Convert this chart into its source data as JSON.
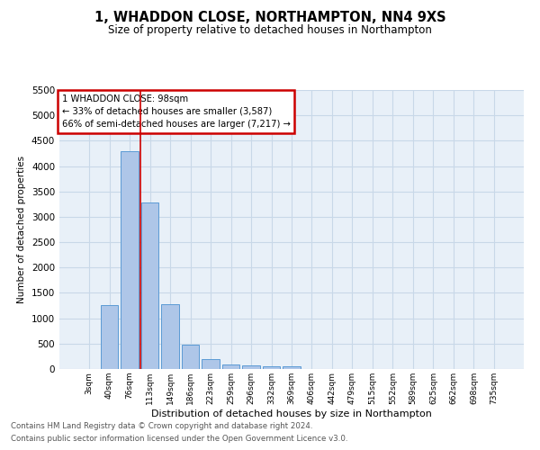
{
  "title": "1, WHADDON CLOSE, NORTHAMPTON, NN4 9XS",
  "subtitle": "Size of property relative to detached houses in Northampton",
  "xlabel": "Distribution of detached houses by size in Northampton",
  "ylabel": "Number of detached properties",
  "footnote1": "Contains HM Land Registry data © Crown copyright and database right 2024.",
  "footnote2": "Contains public sector information licensed under the Open Government Licence v3.0.",
  "bar_labels": [
    "3sqm",
    "40sqm",
    "76sqm",
    "113sqm",
    "149sqm",
    "186sqm",
    "223sqm",
    "259sqm",
    "296sqm",
    "332sqm",
    "369sqm",
    "406sqm",
    "442sqm",
    "479sqm",
    "515sqm",
    "552sqm",
    "589sqm",
    "625sqm",
    "662sqm",
    "698sqm",
    "735sqm"
  ],
  "bar_values": [
    0,
    1260,
    4300,
    3280,
    1270,
    480,
    195,
    95,
    75,
    50,
    45,
    0,
    0,
    0,
    0,
    0,
    0,
    0,
    0,
    0,
    0
  ],
  "bar_color": "#aec6e8",
  "bar_edge_color": "#5b9bd5",
  "vline_x": 2.55,
  "vline_color": "#cc0000",
  "ylim": [
    0,
    5500
  ],
  "yticks": [
    0,
    500,
    1000,
    1500,
    2000,
    2500,
    3000,
    3500,
    4000,
    4500,
    5000,
    5500
  ],
  "annotation_text": "1 WHADDON CLOSE: 98sqm\n← 33% of detached houses are smaller (3,587)\n66% of semi-detached houses are larger (7,217) →",
  "annotation_box_color": "#ffffff",
  "annotation_box_edge": "#cc0000",
  "grid_color": "#c8d8e8",
  "bg_color": "#e8f0f8",
  "fig_bg_color": "#ffffff"
}
